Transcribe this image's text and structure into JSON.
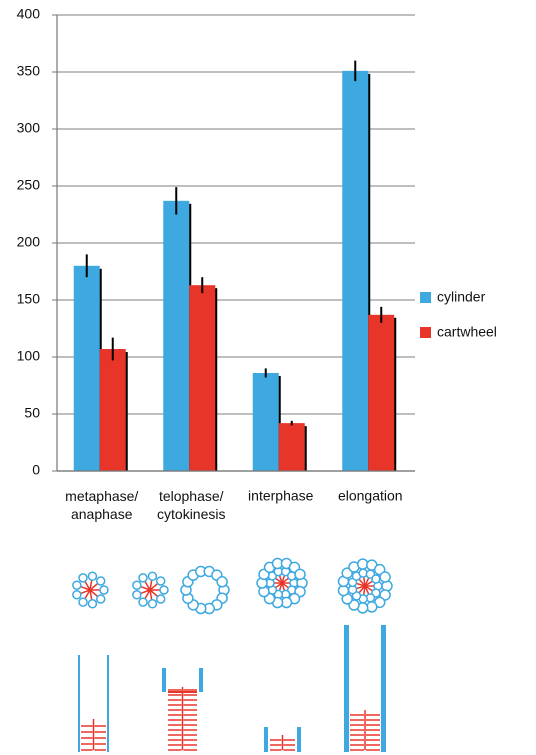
{
  "chart_data": {
    "type": "bar",
    "categories": [
      "metaphase/\nanaphase",
      "telophase/\ncytokinesis",
      "interphase",
      "elongation"
    ],
    "series": [
      {
        "name": "cylinder",
        "color": "#3ea9e0",
        "values": [
          180,
          237,
          86,
          351
        ],
        "errors": [
          10,
          12,
          4,
          9
        ]
      },
      {
        "name": "cartwheel",
        "color": "#e8352a",
        "values": [
          107,
          163,
          42,
          137
        ],
        "errors": [
          10,
          7,
          2,
          7
        ]
      }
    ],
    "ylim": [
      0,
      400
    ],
    "yticks": [
      0,
      50,
      100,
      150,
      200,
      250,
      300,
      350,
      400
    ],
    "grid": true,
    "legend": "right"
  }
}
